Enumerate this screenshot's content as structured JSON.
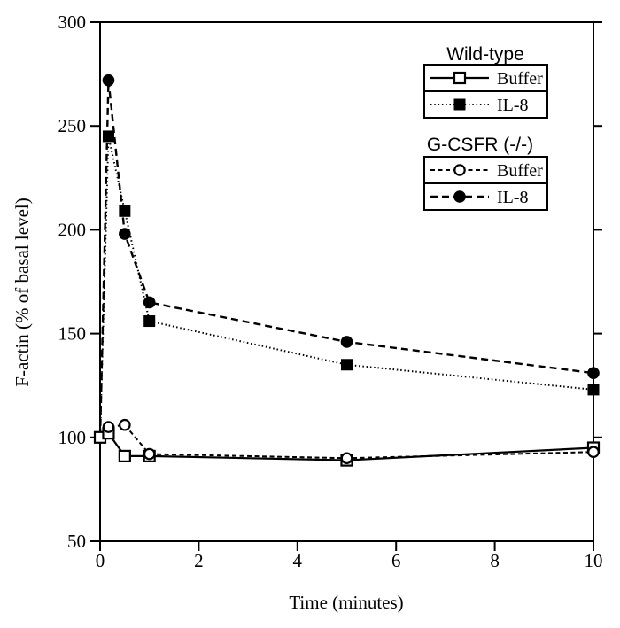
{
  "figure": {
    "background": "#ffffff",
    "foreground": "#000000"
  },
  "chart_data": {
    "type": "line",
    "title": "",
    "xlabel": "Time (minutes)",
    "ylabel": "F-actin (% of basal level)",
    "xlim": [
      0,
      10
    ],
    "ylim": [
      50,
      300
    ],
    "x_ticks": [
      0,
      2,
      4,
      6,
      8,
      10
    ],
    "y_ticks": [
      50,
      100,
      150,
      200,
      250,
      300
    ],
    "grid": false,
    "legend_position": "upper-right-inside",
    "legend_groups": [
      {
        "title": "Wild-type",
        "entries": [
          {
            "label": "Buffer",
            "series": "wt_buffer"
          },
          {
            "label": "IL-8",
            "series": "wt_il8"
          }
        ]
      },
      {
        "title": "G-CSFR (-/-)",
        "entries": [
          {
            "label": "Buffer",
            "series": "gcsfr_buffer"
          },
          {
            "label": "IL-8",
            "series": "gcsfr_il8"
          }
        ]
      }
    ],
    "series": [
      {
        "id": "wt_il8",
        "name": "Wild-type IL-8",
        "marker": "filled-square",
        "line": "dotted",
        "show_first_marker": false,
        "points": [
          [
            0,
            100
          ],
          [
            0.17,
            245
          ],
          [
            0.5,
            209
          ],
          [
            1,
            156
          ],
          [
            5,
            135
          ],
          [
            10,
            123
          ]
        ]
      },
      {
        "id": "gcsfr_il8",
        "name": "G-CSFR (-/-) IL-8",
        "marker": "filled-circle",
        "line": "dashed",
        "show_first_marker": false,
        "points": [
          [
            0,
            100
          ],
          [
            0.17,
            272
          ],
          [
            0.5,
            198
          ],
          [
            1,
            165
          ],
          [
            5,
            146
          ],
          [
            10,
            131
          ]
        ]
      },
      {
        "id": "gcsfr_buffer",
        "name": "G-CSFR (-/-) Buffer",
        "marker": "open-circle",
        "line": "dashed-short",
        "show_first_marker": false,
        "points": [
          [
            0,
            100
          ],
          [
            0.17,
            105
          ],
          [
            0.5,
            106
          ],
          [
            1,
            92
          ],
          [
            5,
            90
          ],
          [
            10,
            93
          ]
        ]
      },
      {
        "id": "wt_buffer",
        "name": "Wild-type Buffer",
        "marker": "open-square",
        "line": "solid",
        "show_first_marker": true,
        "points": [
          [
            0,
            100
          ],
          [
            0.17,
            102
          ],
          [
            0.5,
            91
          ],
          [
            1,
            91
          ],
          [
            5,
            89
          ],
          [
            10,
            95
          ]
        ]
      }
    ]
  }
}
